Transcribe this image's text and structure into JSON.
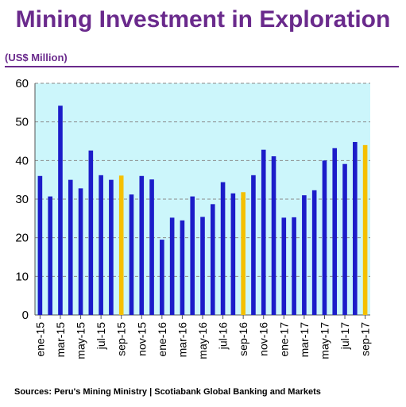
{
  "header": {
    "title": "Mining Investment in Exploration",
    "unit": "(US$ Million)"
  },
  "footer": {
    "source": "Sources: Peru's Mining Ministry | Scotiabank Global Banking and Markets"
  },
  "colors": {
    "title": "#6a2a8c",
    "bar": "#1c1cc9",
    "highlight": "#f5c000",
    "plot_bg": "#ccf6fb",
    "grid": "#8a8a8a"
  },
  "chart_data": {
    "type": "bar",
    "title": "",
    "xlabel": "",
    "ylabel": "",
    "ylim": [
      0,
      60
    ],
    "yticks": [
      0,
      10,
      20,
      30,
      40,
      50,
      60
    ],
    "grid": "horizontal dashed",
    "legend": "none",
    "categories": [
      "ene-15",
      "feb-15",
      "mar-15",
      "abr-15",
      "may-15",
      "jun-15",
      "jul-15",
      "ago-15",
      "sep-15",
      "oct-15",
      "nov-15",
      "dic-15",
      "ene-16",
      "feb-16",
      "mar-16",
      "abr-16",
      "may-16",
      "jun-16",
      "jul-16",
      "ago-16",
      "sep-16",
      "oct-16",
      "nov-16",
      "dic-16",
      "ene-17",
      "feb-17",
      "mar-17",
      "abr-17",
      "may-17",
      "jun-17",
      "jul-17",
      "ago-17",
      "sep-17"
    ],
    "tick_labels": [
      "ene-15",
      "mar-15",
      "may-15",
      "jul-15",
      "sep-15",
      "nov-15",
      "ene-16",
      "mar-16",
      "may-16",
      "jul-16",
      "sep-16",
      "nov-16",
      "ene-17",
      "mar-17",
      "may-17",
      "jul-17",
      "sep-17"
    ],
    "values": [
      36,
      30.7,
      54.2,
      35,
      32.8,
      42.6,
      36.2,
      35,
      36.1,
      31.2,
      36,
      35.1,
      19.5,
      25.2,
      24.5,
      30.7,
      25.4,
      28.7,
      34.4,
      31.5,
      31.8,
      36.2,
      42.8,
      41.1,
      25.2,
      25.3,
      31,
      32.3,
      40,
      43.2,
      39.1,
      44.8,
      44
    ],
    "highlighted_categories": [
      "sep-15",
      "sep-16",
      "sep-17"
    ]
  }
}
